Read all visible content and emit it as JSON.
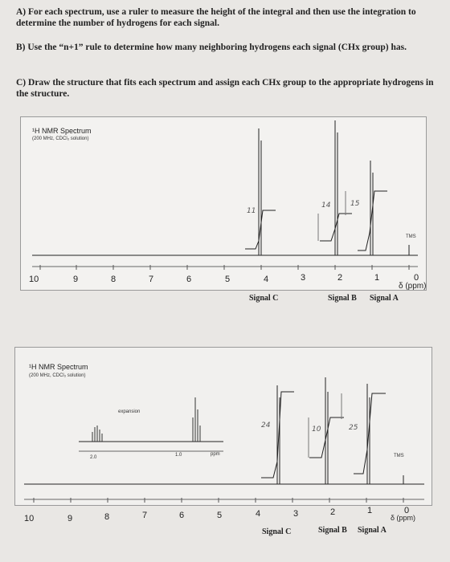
{
  "instructions": {
    "a": "A) For each spectrum, use a ruler to measure the height of the integral and then use the integration to determine the number of hydrogens for each signal.",
    "b": "B) Use the “n+1” rule to determine how many neighboring hydrogens each signal (CHx group) has.",
    "c": "C) Draw the structure that fits each spectrum and assign each CHx group to the appropriate hydrogens in the structure."
  },
  "spectrum1": {
    "title": "¹H NMR Spectrum",
    "subtitle": "(200 MHz, CDCl₃ solution)",
    "tms": "TMS",
    "axis_ticks": [
      "10",
      "9",
      "8",
      "7",
      "6",
      "5",
      "4",
      "3",
      "2",
      "1",
      "0"
    ],
    "axis_unit": "δ (ppm)",
    "integral_notes": [
      "11",
      "14",
      "15"
    ],
    "signal_labels": [
      "Signal C",
      "Signal B",
      "Signal A"
    ]
  },
  "spectrum2": {
    "title": "¹H NMR Spectrum",
    "subtitle": "(200 MHz, CDCl₃ solution)",
    "expansion": "expansion",
    "inset_ticks": [
      "2.0",
      "1.0",
      "ppm"
    ],
    "tms": "TMS",
    "axis_ticks": [
      "10",
      "9",
      "8",
      "7",
      "6",
      "5",
      "4",
      "3",
      "2",
      "1",
      "0"
    ],
    "axis_unit": "δ (ppm)",
    "integral_notes": [
      "24",
      "10",
      "25"
    ],
    "signal_labels": [
      "Signal C",
      "Signal B",
      "Signal A"
    ]
  }
}
